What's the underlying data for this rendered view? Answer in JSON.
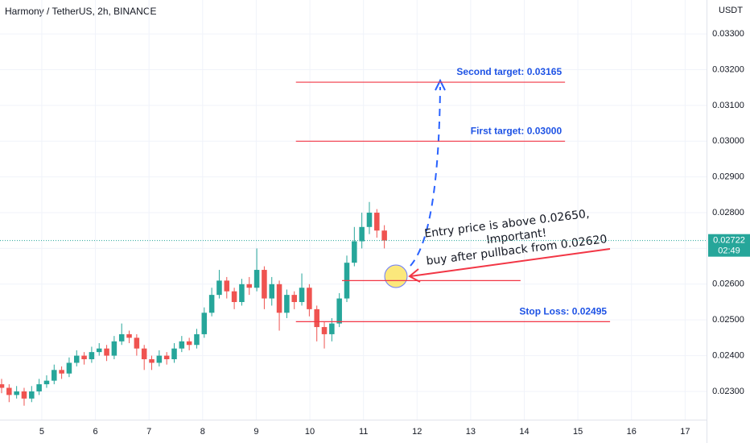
{
  "chart_data": {
    "type": "candlestick",
    "title": "Harmony / TetherUS, 2h, BINANCE",
    "currency": "USDT",
    "colors": {
      "up": "#26a69a",
      "down": "#ef5350"
    },
    "xlim": [
      4.22,
      17.4
    ],
    "ylim": [
      0.03395,
      0.02221
    ],
    "xticks": [
      5,
      6,
      7,
      8,
      9,
      10,
      11,
      12,
      13,
      14,
      15,
      16,
      17
    ],
    "yticks": [
      {
        "value": 0.033,
        "label": "0.03300"
      },
      {
        "value": 0.032,
        "label": "0.03200"
      },
      {
        "value": 0.031,
        "label": "0.03100"
      },
      {
        "value": 0.03,
        "label": "0.03000"
      },
      {
        "value": 0.029,
        "label": "0.02900"
      },
      {
        "value": 0.028,
        "label": "0.02800"
      },
      {
        "value": 0.027,
        "label": "0.02700"
      },
      {
        "value": 0.026,
        "label": "0.02600"
      },
      {
        "value": 0.025,
        "label": "0.02500"
      },
      {
        "value": 0.024,
        "label": "0.02400"
      },
      {
        "value": 0.023,
        "label": "0.02300"
      }
    ],
    "x": [
      4.25,
      4.39,
      4.53,
      4.67,
      4.81,
      4.95,
      5.09,
      5.23,
      5.37,
      5.51,
      5.65,
      5.79,
      5.93,
      6.07,
      6.21,
      6.35,
      6.49,
      6.63,
      6.77,
      6.91,
      7.05,
      7.19,
      7.33,
      7.47,
      7.61,
      7.75,
      7.89,
      8.03,
      8.17,
      8.31,
      8.45,
      8.59,
      8.73,
      8.87,
      9.01,
      9.15,
      9.29,
      9.43,
      9.57,
      9.71,
      9.85,
      9.99,
      10.13,
      10.27,
      10.41,
      10.55,
      10.69,
      10.83,
      10.97,
      11.11,
      11.25,
      11.39
    ],
    "open": [
      0.0232,
      0.0231,
      0.0229,
      0.023,
      0.0228,
      0.023,
      0.0232,
      0.0233,
      0.0236,
      0.0235,
      0.0238,
      0.024,
      0.0239,
      0.0241,
      0.0242,
      0.024,
      0.0244,
      0.0246,
      0.0245,
      0.0242,
      0.0239,
      0.0238,
      0.024,
      0.0239,
      0.0242,
      0.0244,
      0.0243,
      0.0246,
      0.0252,
      0.0257,
      0.0261,
      0.0258,
      0.0255,
      0.026,
      0.0259,
      0.0264,
      0.0256,
      0.026,
      0.0252,
      0.0257,
      0.0255,
      0.0259,
      0.0253,
      0.0248,
      0.0246,
      0.0249,
      0.0256,
      0.0266,
      0.0272,
      0.0276,
      0.028,
      0.0275
    ],
    "close": [
      0.0231,
      0.0229,
      0.023,
      0.0228,
      0.023,
      0.0232,
      0.0233,
      0.0236,
      0.0235,
      0.0238,
      0.024,
      0.0239,
      0.0241,
      0.0242,
      0.024,
      0.0244,
      0.0246,
      0.0245,
      0.0242,
      0.0239,
      0.0238,
      0.024,
      0.0239,
      0.0242,
      0.0244,
      0.0243,
      0.0246,
      0.0252,
      0.0257,
      0.0261,
      0.0258,
      0.0255,
      0.026,
      0.0259,
      0.0264,
      0.0256,
      0.026,
      0.0252,
      0.0257,
      0.0255,
      0.0259,
      0.0253,
      0.0248,
      0.0246,
      0.0249,
      0.0256,
      0.0266,
      0.0272,
      0.0276,
      0.028,
      0.0275,
      0.02722
    ],
    "high": [
      0.02335,
      0.0232,
      0.02315,
      0.0231,
      0.02315,
      0.02335,
      0.02345,
      0.02375,
      0.0237,
      0.02395,
      0.02415,
      0.0241,
      0.02425,
      0.02435,
      0.0243,
      0.02455,
      0.0249,
      0.0247,
      0.0246,
      0.0243,
      0.024,
      0.02415,
      0.0241,
      0.02435,
      0.02455,
      0.0245,
      0.02475,
      0.02535,
      0.0259,
      0.0264,
      0.0262,
      0.0259,
      0.02615,
      0.0262,
      0.027,
      0.0265,
      0.0262,
      0.0261,
      0.02585,
      0.0258,
      0.0263,
      0.026,
      0.0254,
      0.02495,
      0.02505,
      0.02575,
      0.0268,
      0.0276,
      0.028,
      0.0283,
      0.0281,
      0.02765
    ],
    "low": [
      0.02295,
      0.0227,
      0.0228,
      0.0226,
      0.0227,
      0.0229,
      0.0231,
      0.0232,
      0.02335,
      0.0234,
      0.0237,
      0.02375,
      0.0238,
      0.024,
      0.02385,
      0.0239,
      0.0243,
      0.02435,
      0.024,
      0.0236,
      0.0236,
      0.0237,
      0.02375,
      0.0238,
      0.0241,
      0.02415,
      0.0242,
      0.0245,
      0.0251,
      0.0256,
      0.0256,
      0.0253,
      0.0254,
      0.0257,
      0.0258,
      0.0253,
      0.0254,
      0.0247,
      0.02505,
      0.0253,
      0.0254,
      0.0251,
      0.0244,
      0.0242,
      0.0244,
      0.0248,
      0.0255,
      0.0265,
      0.027,
      0.0274,
      0.0273,
      0.027
    ],
    "last_price": {
      "value": 0.02722,
      "countdown": "02:49"
    },
    "levels": [
      {
        "label": "Second target: 0.03165",
        "value": 0.03165,
        "x": [
          9.74,
          14.76
        ],
        "color": "#1e53e5"
      },
      {
        "label": "First target: 0.03000",
        "value": 0.03,
        "x": [
          9.74,
          14.76
        ],
        "color": "#1e53e5"
      },
      {
        "value": 0.0261,
        "x": [
          10.6,
          13.93
        ]
      },
      {
        "label": "Stop Loss: 0.02495",
        "value": 0.02495,
        "x": [
          9.74,
          15.6
        ],
        "color": "#1e53e5"
      }
    ],
    "note": [
      "Entry price is above 0.02650,",
      "Important!",
      "buy after pullback from 0.02620"
    ]
  }
}
